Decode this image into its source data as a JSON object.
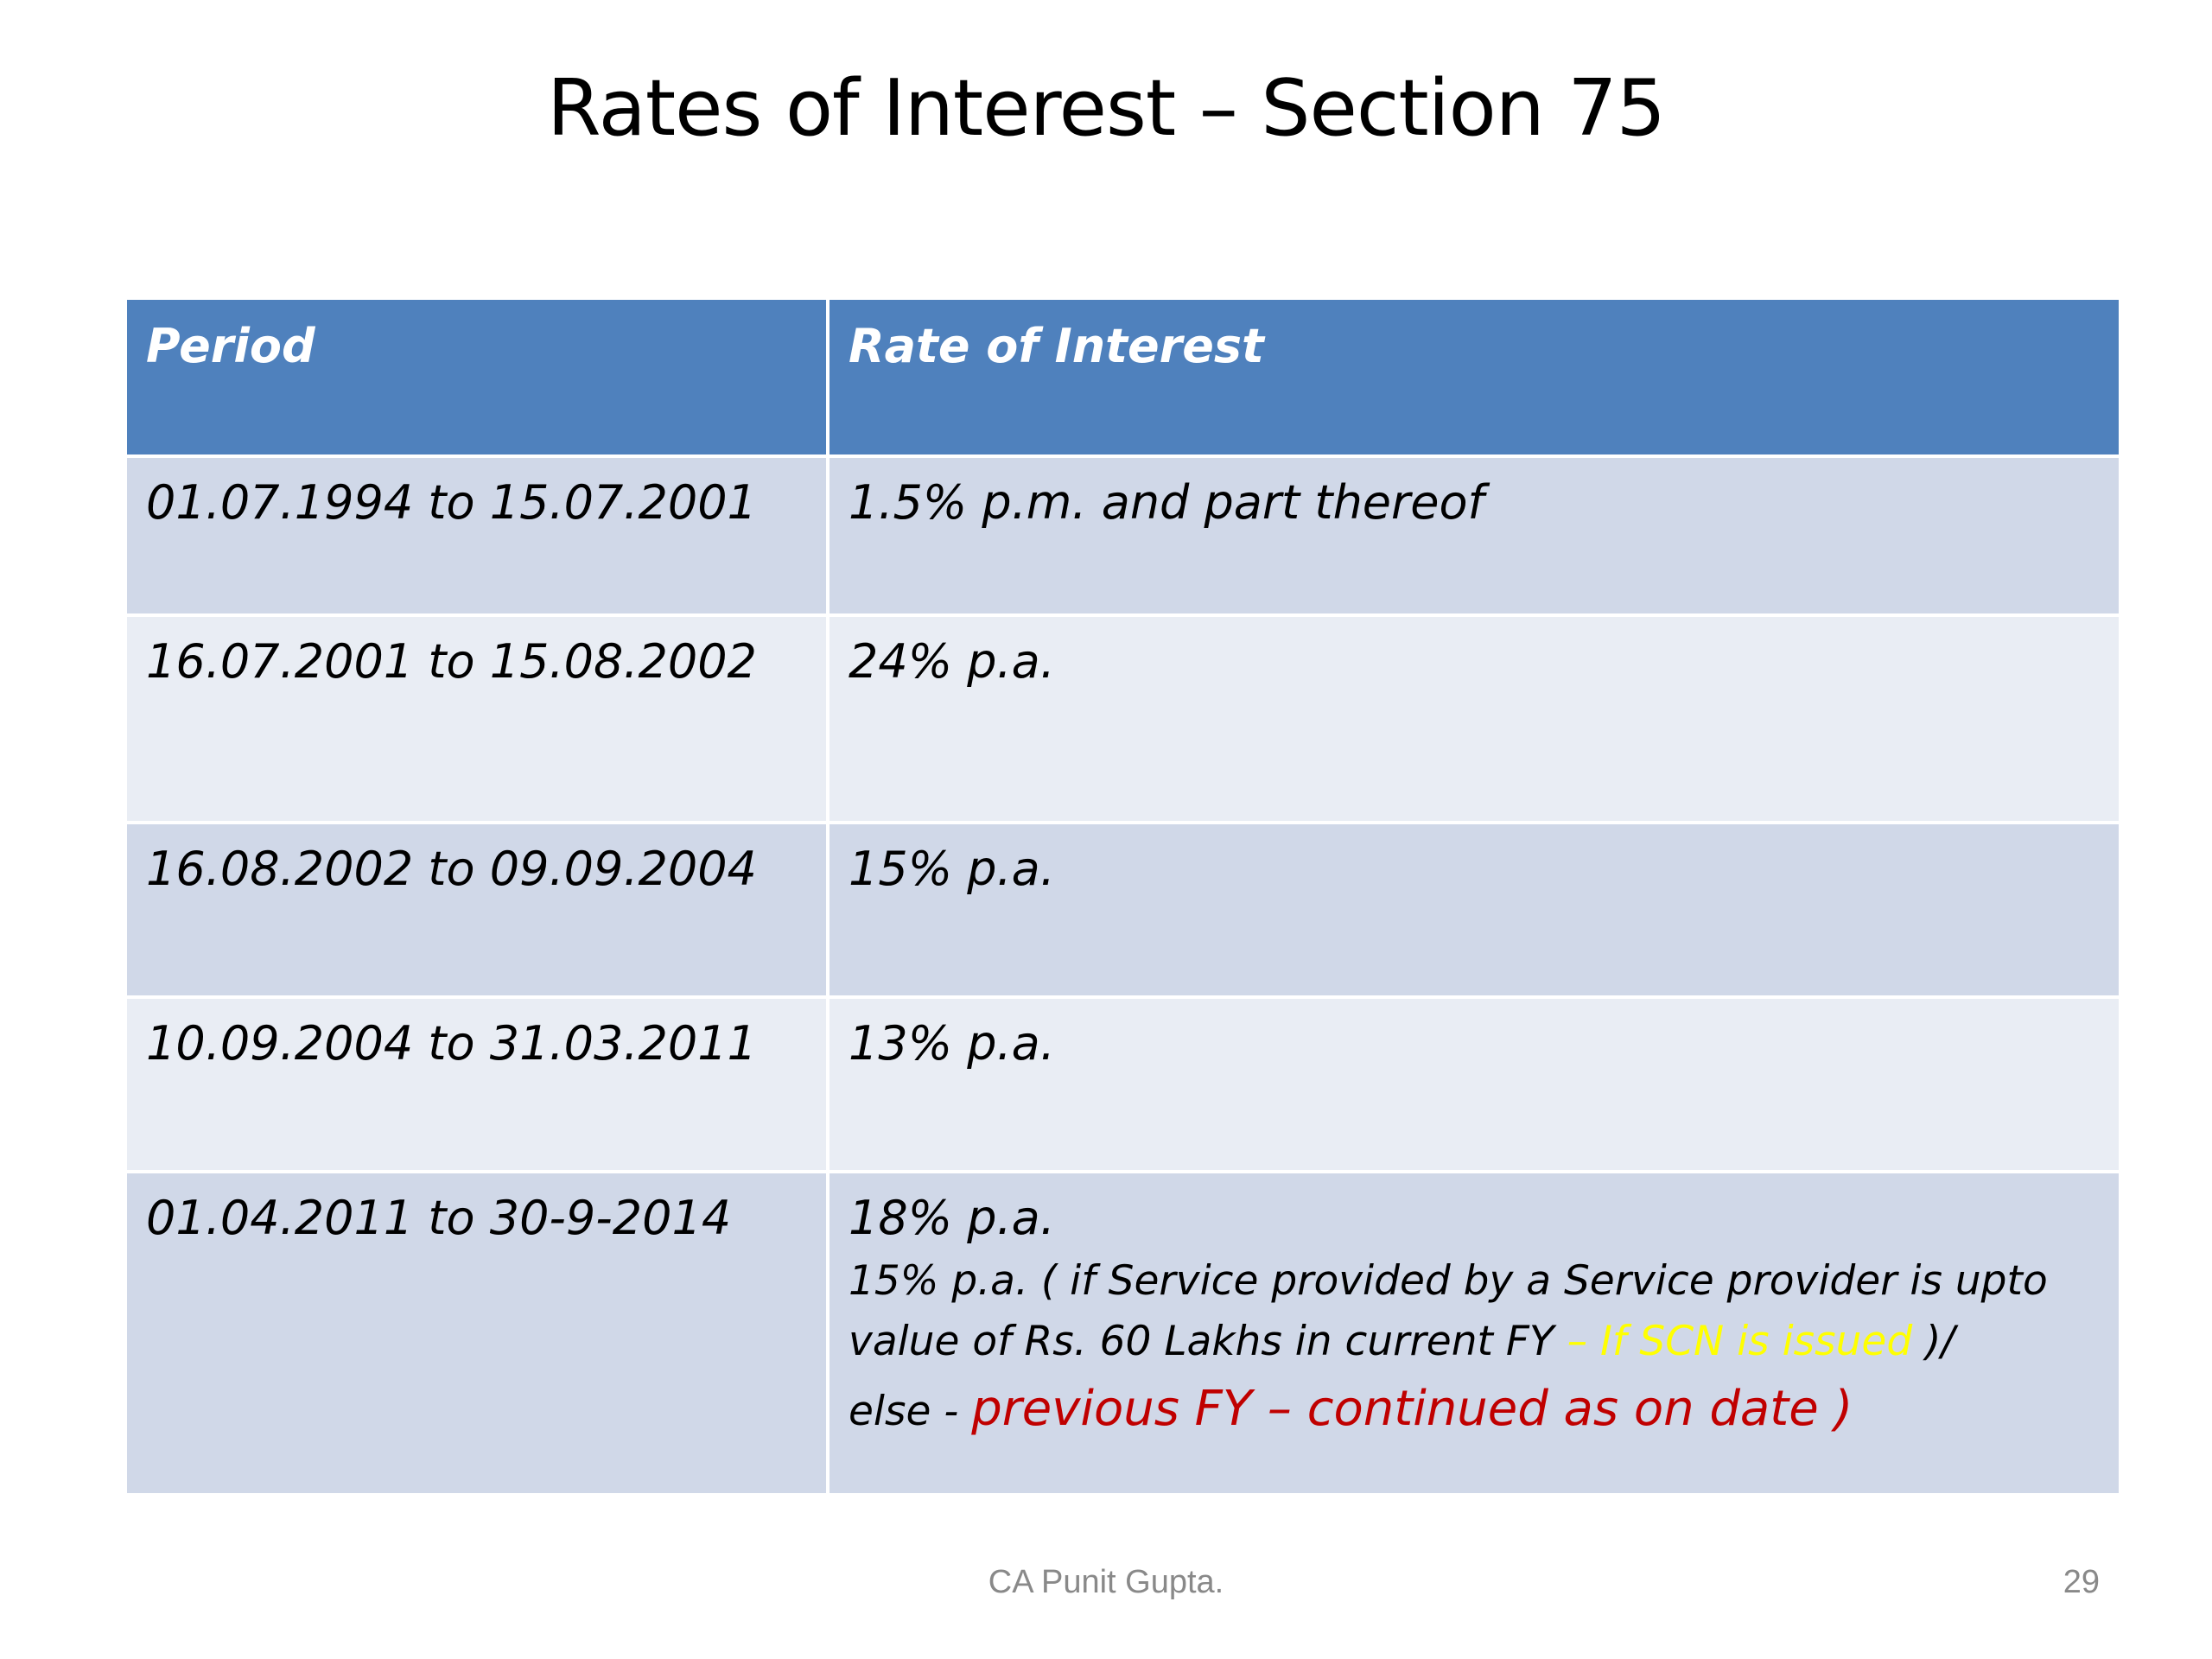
{
  "title": "Rates of Interest – Section 75",
  "table": {
    "headers": [
      "Period",
      "Rate of Interest"
    ],
    "rows": [
      {
        "period": "01.07.1994 to 15.07.2001",
        "rate": "1.5% p.m. and part thereof"
      },
      {
        "period": "16.07.2001 to 15.08.2002",
        "rate": "24% p.a."
      },
      {
        "period": "16.08.2002 to 09.09.2004",
        "rate": "15% p.a."
      },
      {
        "period": "10.09.2004 to 31.03.2011",
        "rate": "13% p.a."
      },
      {
        "period": "01.04.2011  to 30-9-2014",
        "rate": "18% p.a.",
        "note_line1": "15% p.a. ( if  Service provided  by a  Service provider  is  upto",
        "note_line2_prefix": "value of  Rs. 60 Lakhs in  current FY ",
        "note_line2_highlight": "– If SCN is issued ",
        "note_line2_suffix": ")/",
        "note_line3_prefix": "else  - ",
        "note_line3_highlight": "previous FY – continued  as on date )"
      }
    ]
  },
  "colors": {
    "header_bg": "#4f81bd",
    "row_odd_bg": "#d0d8e8",
    "row_even_bg": "#e9edf4",
    "highlight_yellow": "#ffff00",
    "highlight_red": "#c00000"
  },
  "footer": {
    "author": "CA Punit Gupta.",
    "page_number": "29"
  }
}
